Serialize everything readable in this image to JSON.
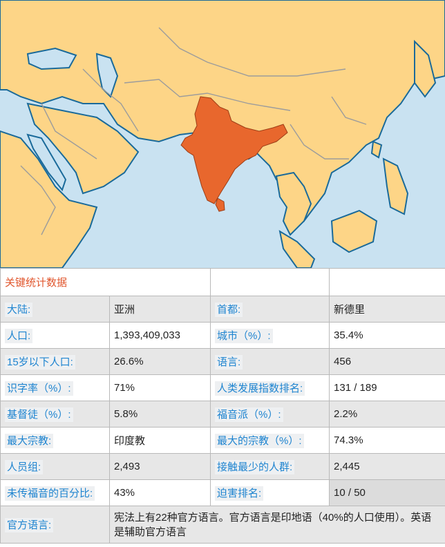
{
  "map": {
    "highlight_country_color": "#e8672d",
    "land_color": "#fdd587",
    "water_color": "#c9e2f1",
    "coast_color": "#1a6a9a",
    "border_color": "#9c9c9c"
  },
  "stats": {
    "title": "关键统计数据",
    "rows": [
      {
        "l1": "大陆:",
        "v1": "亚洲",
        "l2": "首都:",
        "v2": "新德里"
      },
      {
        "l1": "人口:",
        "v1": "1,393,409,033",
        "l2": "城市（%）:",
        "v2": "35.4%"
      },
      {
        "l1": "15岁以下人口:",
        "v1": "26.6%",
        "l2": "语言:",
        "v2": "456"
      },
      {
        "l1": "识字率（%）:",
        "v1": "71%",
        "l2": "人类发展指数排名:",
        "v2": "131 / 189"
      },
      {
        "l1": "基督徒（%）:",
        "v1": "5.8%",
        "l2": "福音派（%）:",
        "v2": "2.2%"
      },
      {
        "l1": "最大宗教:",
        "v1": "印度教",
        "l2": "最大的宗教（%）:",
        "v2": "74.3%"
      },
      {
        "l1": "人员组:",
        "v1": "2,493",
        "l2": "接触最少的人群:",
        "v2": "2,445"
      },
      {
        "l1": "未传福音的百分比:",
        "v1": "43%",
        "l2": "迫害排名:",
        "v2": "10 / 50"
      }
    ],
    "official_language_label": "官方语言:",
    "official_language_value": "宪法上有22种官方语言。官方语言是印地语（40%的人口使用）。英语是辅助官方语言"
  }
}
